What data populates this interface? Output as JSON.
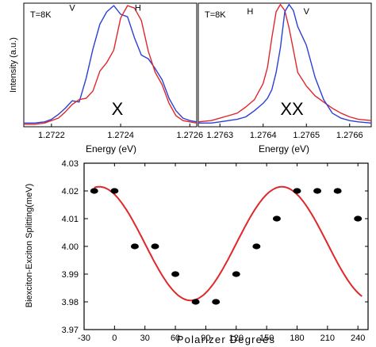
{
  "colors": {
    "red": "#e0282c",
    "blue": "#2b3fd6",
    "axis": "#000000",
    "dot": "#000000"
  },
  "chart_data": [
    {
      "type": "line",
      "panel": "top-left",
      "annotation": "T=8K",
      "center_label": "X",
      "xlabel": "Energy (eV)",
      "ylabel": "Intensity (a.u.)",
      "xlim": [
        1.27212,
        1.27262
      ],
      "ylim": [
        0,
        1
      ],
      "x_ticks": [
        "1.2722",
        "1.2724",
        "1.2726"
      ],
      "x_tick_values": [
        1.2722,
        1.2724,
        1.2726
      ],
      "series": [
        {
          "name": "V",
          "color": "#2b3fd6",
          "label_at": [
            1.27226,
            0.94
          ],
          "x": [
            1.27212,
            1.27215,
            1.27218,
            1.2722,
            1.27222,
            1.27224,
            1.27226,
            1.27228,
            1.2723,
            1.27232,
            1.27234,
            1.27236,
            1.27238,
            1.2724,
            1.27242,
            1.27244,
            1.27246,
            1.27248,
            1.2725,
            1.27252,
            1.27254,
            1.27256,
            1.27258,
            1.2726,
            1.27262
          ],
          "y": [
            0.03,
            0.03,
            0.04,
            0.06,
            0.1,
            0.15,
            0.21,
            0.2,
            0.39,
            0.63,
            0.83,
            0.93,
            0.98,
            0.91,
            0.89,
            0.72,
            0.58,
            0.55,
            0.47,
            0.38,
            0.23,
            0.13,
            0.07,
            0.05,
            0.04
          ]
        },
        {
          "name": "H",
          "color": "#e0282c",
          "label_at": [
            1.27245,
            0.94
          ],
          "x": [
            1.27212,
            1.27215,
            1.27218,
            1.2722,
            1.27222,
            1.27224,
            1.27226,
            1.27228,
            1.2723,
            1.27232,
            1.27234,
            1.27236,
            1.27238,
            1.2724,
            1.27242,
            1.27244,
            1.27246,
            1.27248,
            1.2725,
            1.27252,
            1.27254,
            1.27256,
            1.27258,
            1.2726,
            1.27262
          ],
          "y": [
            0.02,
            0.02,
            0.03,
            0.05,
            0.07,
            0.12,
            0.18,
            0.22,
            0.23,
            0.29,
            0.45,
            0.52,
            0.62,
            0.88,
            0.98,
            0.96,
            0.86,
            0.61,
            0.44,
            0.34,
            0.19,
            0.09,
            0.05,
            0.04,
            0.03
          ]
        }
      ]
    },
    {
      "type": "line",
      "panel": "top-right",
      "annotation": "T=8K",
      "center_label": "XX",
      "xlabel": "Energy (eV)",
      "ylabel": "",
      "xlim": [
        1.27625,
        1.27665
      ],
      "ylim": [
        0,
        1
      ],
      "x_ticks": [
        "1.2763",
        "1.2764",
        "1.2765",
        "1.2766"
      ],
      "x_tick_values": [
        1.2763,
        1.2764,
        1.2765,
        1.2766
      ],
      "series": [
        {
          "name": "H",
          "color": "#e0282c",
          "label_at": [
            1.27637,
            0.91
          ],
          "x": [
            1.27625,
            1.27628,
            1.2763,
            1.27632,
            1.27634,
            1.27636,
            1.27638,
            1.2764,
            1.27641,
            1.27642,
            1.27643,
            1.27644,
            1.27645,
            1.27646,
            1.27647,
            1.27648,
            1.2765,
            1.27652,
            1.27654,
            1.27656,
            1.27658,
            1.2766,
            1.27662,
            1.27665
          ],
          "y": [
            0.04,
            0.05,
            0.07,
            0.09,
            0.11,
            0.16,
            0.22,
            0.35,
            0.48,
            0.72,
            0.93,
            0.99,
            0.94,
            0.8,
            0.62,
            0.44,
            0.33,
            0.25,
            0.2,
            0.15,
            0.11,
            0.08,
            0.06,
            0.05
          ]
        },
        {
          "name": "V",
          "color": "#2b3fd6",
          "label_at": [
            1.2765,
            0.91
          ],
          "x": [
            1.27625,
            1.27628,
            1.2763,
            1.27632,
            1.27634,
            1.27636,
            1.27638,
            1.2764,
            1.27641,
            1.27642,
            1.27643,
            1.27644,
            1.27645,
            1.27646,
            1.27647,
            1.27648,
            1.2765,
            1.27652,
            1.27654,
            1.27656,
            1.27658,
            1.2766,
            1.27662,
            1.27665
          ],
          "y": [
            0.03,
            0.03,
            0.04,
            0.05,
            0.06,
            0.08,
            0.13,
            0.19,
            0.23,
            0.3,
            0.44,
            0.64,
            0.93,
            0.99,
            0.94,
            0.81,
            0.66,
            0.4,
            0.22,
            0.11,
            0.07,
            0.05,
            0.04,
            0.03
          ]
        }
      ]
    },
    {
      "type": "scatter",
      "panel": "bottom",
      "xlabel": "Polarizer Degrees",
      "ylabel": "Biexciton-Exciton Splitting(meV)",
      "xlim": [
        -30,
        250
      ],
      "ylim": [
        3.97,
        4.03
      ],
      "x_ticks": [
        "-30",
        "0",
        "30",
        "60",
        "90",
        "120",
        "150",
        "180",
        "210",
        "240"
      ],
      "x_tick_values": [
        -30,
        0,
        30,
        60,
        90,
        120,
        150,
        180,
        210,
        240
      ],
      "y_ticks": [
        "3.97",
        "3.98",
        "3.99",
        "4.00",
        "4.01",
        "4.02",
        "4.03"
      ],
      "y_tick_values": [
        3.97,
        3.98,
        3.99,
        4.0,
        4.01,
        4.02,
        4.03
      ],
      "points": {
        "x": [
          -20,
          0,
          20,
          40,
          60,
          80,
          100,
          120,
          140,
          160,
          180,
          200,
          220,
          240
        ],
        "y": [
          4.02,
          4.02,
          4.0,
          4.0,
          3.99,
          3.98,
          3.98,
          3.99,
          4.0,
          4.01,
          4.02,
          4.02,
          4.02,
          4.01
        ]
      },
      "fit": {
        "type": "sine",
        "offset": 4.001,
        "amplitude": 0.0205,
        "period_deg": 180,
        "max_at_deg": -15
      }
    }
  ]
}
